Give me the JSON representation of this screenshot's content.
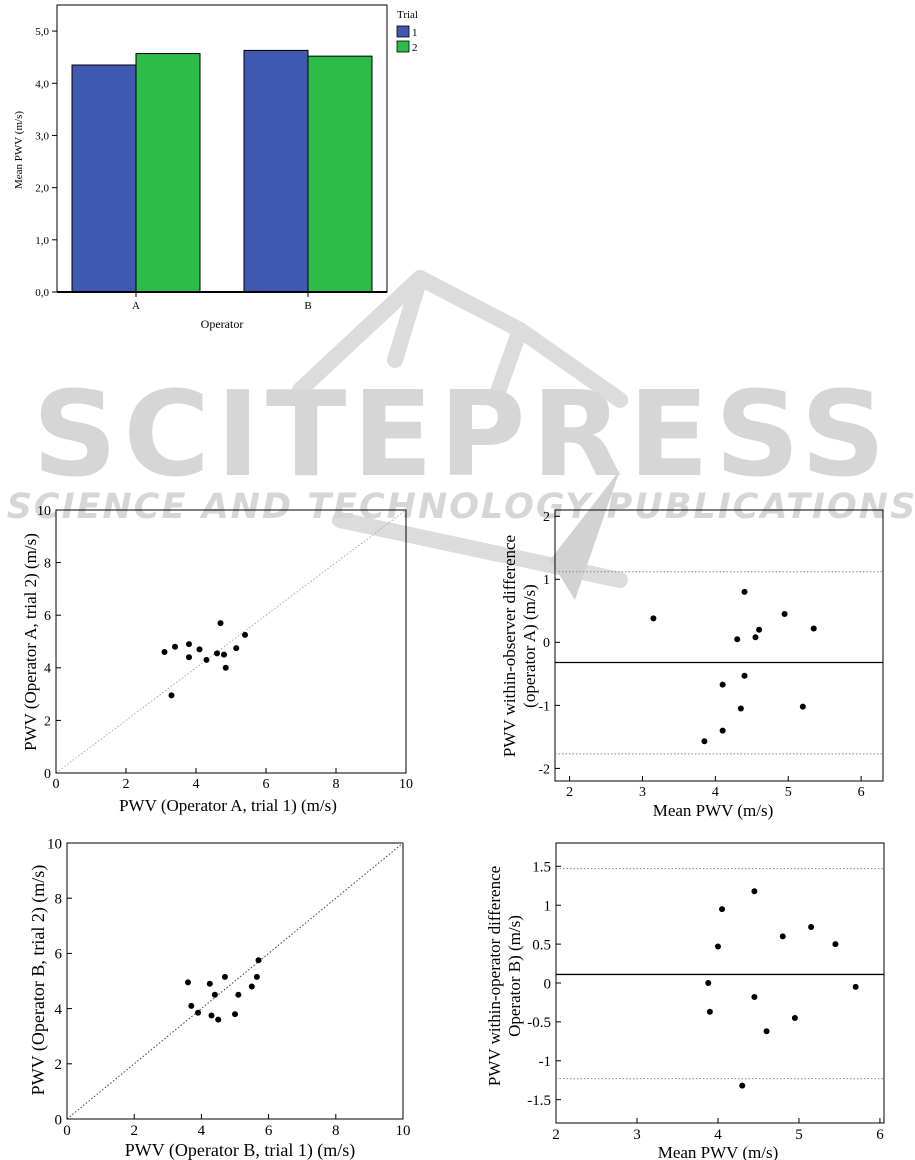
{
  "watermark": {
    "text": "SCITEPRESS",
    "subtext": "SCIENCE AND TECHNOLOGY PUBLICATIONS",
    "color": "#d6d6d6"
  },
  "chart_data": [
    {
      "type": "bar",
      "xlabel": "Operator",
      "ylabel": "Mean PWV (m/s)",
      "categories": [
        "A",
        "B"
      ],
      "ylim": [
        0,
        5.5
      ],
      "yticks": [
        "0,0",
        "1,0",
        "2,0",
        "3,0",
        "4,0",
        "5,0"
      ],
      "legend_title": "Trial",
      "legend_position": "top-right outside",
      "series": [
        {
          "name": "1",
          "color": "#3f59b0",
          "values": [
            4.35,
            4.63
          ]
        },
        {
          "name": "2",
          "color": "#2dbb4a",
          "values": [
            4.57,
            4.52
          ]
        }
      ]
    },
    {
      "type": "scatter",
      "xlabel": "PWV (Operator A, trial 1) (m/s)",
      "ylabel": "PWV (Operator A, trial 2) (m/s)",
      "xlim": [
        0,
        10
      ],
      "ylim": [
        0,
        10
      ],
      "xticks": [
        0,
        2,
        4,
        6,
        8,
        10
      ],
      "yticks": [
        0,
        2,
        4,
        6,
        8,
        10
      ],
      "identity_line": true,
      "points": [
        [
          3.1,
          4.6
        ],
        [
          3.4,
          4.8
        ],
        [
          3.8,
          4.9
        ],
        [
          3.8,
          4.4
        ],
        [
          4.1,
          4.7
        ],
        [
          4.3,
          4.3
        ],
        [
          4.6,
          4.55
        ],
        [
          4.7,
          5.7
        ],
        [
          4.8,
          4.5
        ],
        [
          4.85,
          4.0
        ],
        [
          5.15,
          4.75
        ],
        [
          5.4,
          5.25
        ],
        [
          3.3,
          2.95
        ]
      ]
    },
    {
      "type": "scatter",
      "xlabel": "Mean PWV (m/s)",
      "ylabel": "PWV within-observer difference (operator A) (m/s)",
      "xlim": [
        1.8,
        6.3
      ],
      "ylim": [
        -2.2,
        2.1
      ],
      "xticks": [
        2,
        3,
        4,
        5,
        6
      ],
      "yticks": [
        -2,
        -1,
        0,
        1,
        2
      ],
      "mean_line": -0.32,
      "limits_of_agreement": [
        1.12,
        -1.77
      ],
      "points": [
        [
          3.15,
          0.38
        ],
        [
          4.4,
          0.8
        ],
        [
          4.95,
          0.45
        ],
        [
          4.3,
          0.05
        ],
        [
          4.6,
          0.2
        ],
        [
          4.55,
          0.08
        ],
        [
          5.35,
          0.22
        ],
        [
          4.4,
          -0.53
        ],
        [
          4.1,
          -0.67
        ],
        [
          4.35,
          -1.05
        ],
        [
          5.2,
          -1.02
        ],
        [
          4.1,
          -1.4
        ],
        [
          3.85,
          -1.57
        ]
      ]
    },
    {
      "type": "scatter",
      "xlabel": "PWV (Operator B, trial 1) (m/s)",
      "ylabel": "PWV (Operator B, trial 2) (m/s)",
      "xlim": [
        0,
        10
      ],
      "ylim": [
        0,
        10
      ],
      "xticks": [
        0,
        2,
        4,
        6,
        8,
        10
      ],
      "yticks": [
        0,
        2,
        4,
        6,
        8,
        10
      ],
      "identity_line": true,
      "points": [
        [
          3.6,
          4.95
        ],
        [
          3.7,
          4.1
        ],
        [
          3.9,
          3.85
        ],
        [
          4.25,
          4.9
        ],
        [
          4.3,
          3.75
        ],
        [
          4.4,
          4.5
        ],
        [
          4.5,
          3.6
        ],
        [
          4.7,
          5.15
        ],
        [
          5.0,
          3.8
        ],
        [
          5.1,
          4.5
        ],
        [
          5.5,
          4.8
        ],
        [
          5.65,
          5.15
        ],
        [
          5.7,
          5.75
        ]
      ]
    },
    {
      "type": "scatter",
      "xlabel": "Mean PWV (m/s)",
      "ylabel": "PWV within-operator difference Operator B) (m/s)",
      "xlim": [
        2,
        6.05
      ],
      "ylim": [
        -1.8,
        1.8
      ],
      "xticks": [
        2,
        3,
        4,
        5,
        6
      ],
      "yticks": [
        "1.5",
        "1",
        "0.5",
        "0",
        "-0.5",
        "-1",
        "-1.5"
      ],
      "ytick_values": [
        1.5,
        1,
        0.5,
        0,
        -0.5,
        -1,
        -1.5
      ],
      "mean_line": 0.11,
      "limits_of_agreement": [
        1.47,
        -1.23
      ],
      "points": [
        [
          4.45,
          1.18
        ],
        [
          4.05,
          0.95
        ],
        [
          4.0,
          0.47
        ],
        [
          4.8,
          0.6
        ],
        [
          5.15,
          0.72
        ],
        [
          5.45,
          0.5
        ],
        [
          3.88,
          0.0
        ],
        [
          3.9,
          -0.37
        ],
        [
          4.45,
          -0.18
        ],
        [
          4.6,
          -0.62
        ],
        [
          4.95,
          -0.45
        ],
        [
          5.7,
          -0.05
        ],
        [
          4.3,
          -1.32
        ]
      ]
    }
  ]
}
